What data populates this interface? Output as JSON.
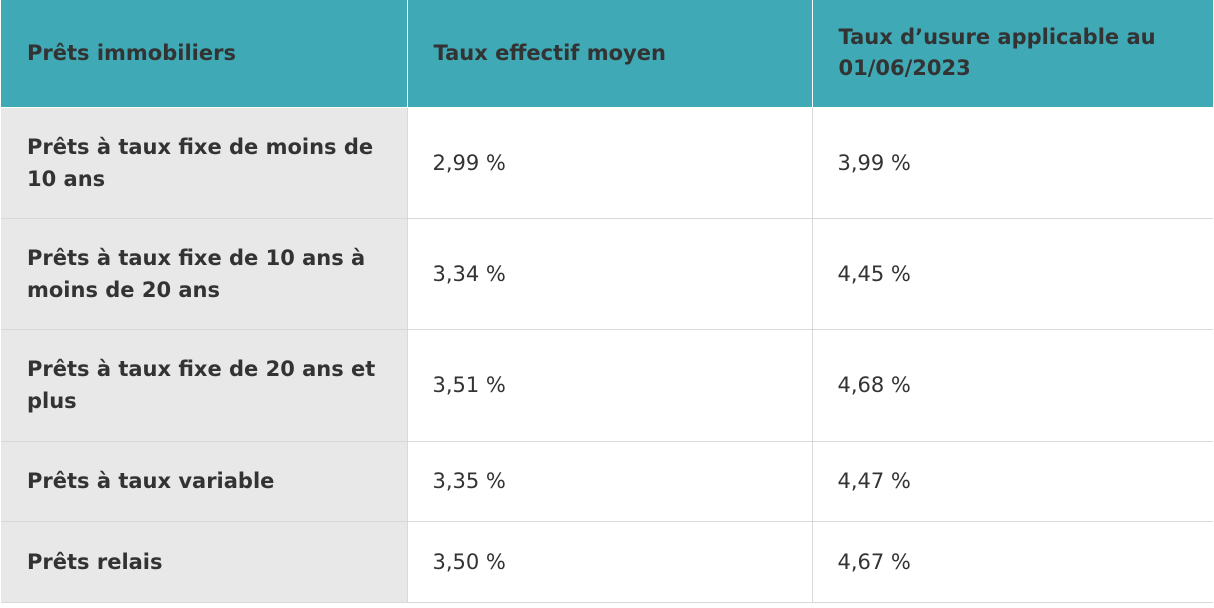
{
  "table": {
    "headers": [
      "Prêts immobiliers",
      "Taux effectif moyen",
      "Taux d’usure applicable au 01/06/2023"
    ],
    "rows": [
      {
        "label": "Prêts à taux fixe de moins de 10 ans",
        "taux_effectif": "2,99 %",
        "taux_usure": "3,99 %"
      },
      {
        "label": "Prêts à taux fixe de 10 ans à moins de 20 ans",
        "taux_effectif": "3,34 %",
        "taux_usure": "4,45 %"
      },
      {
        "label": "Prêts à taux fixe de 20 ans et plus",
        "taux_effectif": "3,51 %",
        "taux_usure": "4,68 %"
      },
      {
        "label": "Prêts à taux variable",
        "taux_effectif": "3,35 %",
        "taux_usure": "4,47 %"
      },
      {
        "label": "Prêts relais",
        "taux_effectif": "3,50 %",
        "taux_usure": "4,67 %"
      }
    ]
  },
  "colors": {
    "header_bg": "#3fa9b5",
    "rowhead_bg": "#e8e8e8",
    "text": "#333333",
    "border": "#d9d9d9"
  }
}
